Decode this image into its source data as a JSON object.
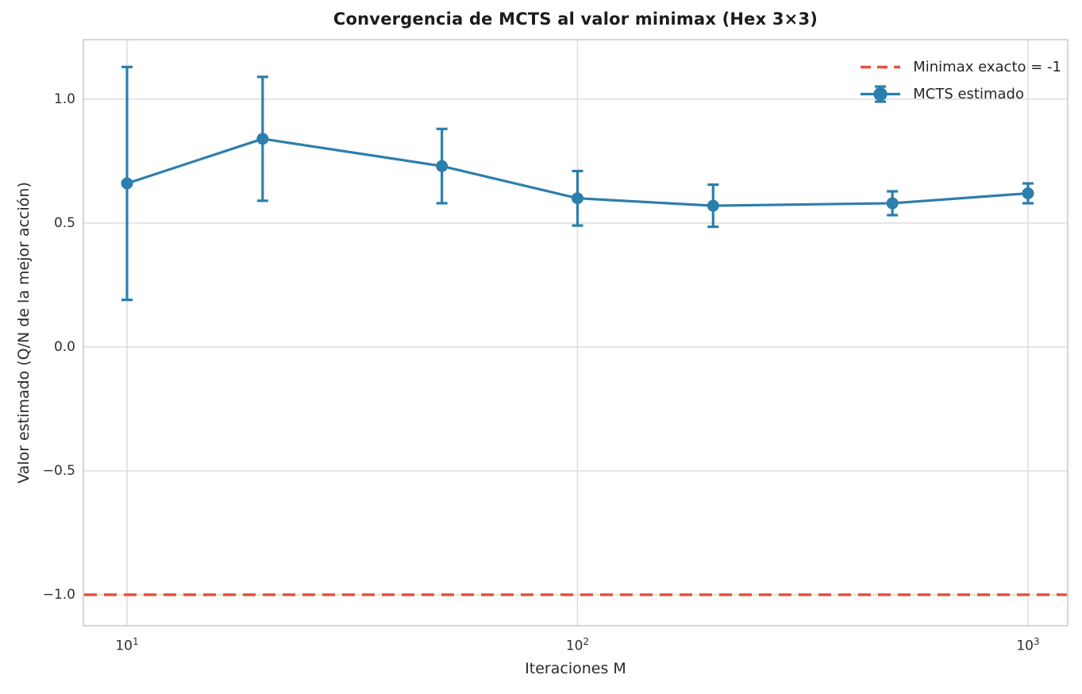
{
  "chart_data": {
    "type": "line",
    "title": "Convergencia de MCTS al valor minimax (Hex 3×3)",
    "xlabel": "Iteraciones M",
    "ylabel": "Valor estimado (Q/N de la mejor acción)",
    "x_scale": "log",
    "grid": true,
    "legend_position": "upper-right",
    "xlim": [
      8,
      1225
    ],
    "ylim": [
      -1.125,
      1.24
    ],
    "x": [
      10,
      20,
      50,
      100,
      200,
      500,
      1000
    ],
    "series": [
      {
        "name": "Minimax exacto = -1",
        "type": "hline",
        "y": -1.0,
        "linestyle": "dashed",
        "color": "#e8503c"
      },
      {
        "name": "MCTS estimado",
        "type": "errorbar-line",
        "color": "#2b7fac",
        "marker": "circle",
        "values": [
          0.66,
          0.84,
          0.73,
          0.6,
          0.57,
          0.58,
          0.62
        ],
        "yerr": [
          0.47,
          0.25,
          0.15,
          0.11,
          0.085,
          0.048,
          0.04
        ]
      }
    ],
    "x_ticks": [
      {
        "value": 10,
        "base": "10",
        "exp": "1"
      },
      {
        "value": 100,
        "base": "10",
        "exp": "2"
      },
      {
        "value": 1000,
        "base": "10",
        "exp": "3"
      }
    ],
    "y_ticks": [
      {
        "value": 1.0,
        "label": "1.0"
      },
      {
        "value": 0.5,
        "label": "0.5"
      },
      {
        "value": 0.0,
        "label": "0.0"
      },
      {
        "value": -0.5,
        "label": "−0.5"
      },
      {
        "value": -1.0,
        "label": "−1.0"
      }
    ],
    "legend": [
      {
        "label": "Minimax exacto = -1",
        "glyph": "dashed-line",
        "color": "#e8503c"
      },
      {
        "label": "MCTS estimado",
        "glyph": "errorbar-marker",
        "color": "#2b7fac"
      }
    ]
  },
  "colors": {
    "background": "#ffffff",
    "grid": "#d9d9d9",
    "spine": "#cccccc",
    "text": "#262626",
    "red": "#e8503c",
    "blue": "#2b7fac"
  }
}
